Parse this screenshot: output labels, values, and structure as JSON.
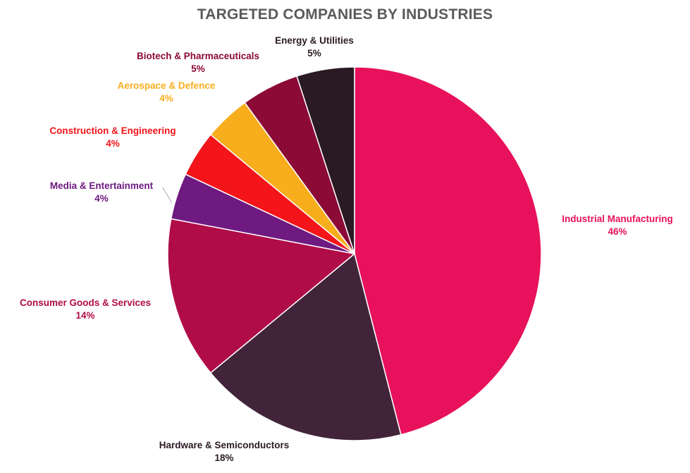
{
  "chart_data": {
    "type": "pie",
    "title": "TARGETED COMPANIES BY INDUSTRIES",
    "start_angle": "top, clockwise",
    "slices": [
      {
        "label": "Industrial Manufacturing",
        "value": 46,
        "pct_label": "46%",
        "color": "#E8115B",
        "label_color": "#E8115B"
      },
      {
        "label": "Hardware & Semiconductors",
        "value": 18,
        "pct_label": "18%",
        "color": "#41243A",
        "label_color": "#2a1a24"
      },
      {
        "label": "Consumer Goods & Services",
        "value": 14,
        "pct_label": "14%",
        "color": "#B00D48",
        "label_color": "#B00D48"
      },
      {
        "label": "Media & Entertainment",
        "value": 4,
        "pct_label": "4%",
        "color": "#6E1A80",
        "label_color": "#6E1A80"
      },
      {
        "label": "Construction & Engineering",
        "value": 4,
        "pct_label": "4%",
        "color": "#F3151A",
        "label_color": "#F3151A"
      },
      {
        "label": "Aerospace & Defence",
        "value": 4,
        "pct_label": "4%",
        "color": "#F8AE1C",
        "label_color": "#F8AE1C"
      },
      {
        "label": "Biotech & Pharmaceuticals",
        "value": 5,
        "pct_label": "5%",
        "color": "#8B0A36",
        "label_color": "#8B0A36"
      },
      {
        "label": "Energy & Utilities",
        "value": 5,
        "pct_label": "5%",
        "color": "#2A1A24",
        "label_color": "#2A1A24"
      }
    ],
    "legend": "none (data labels outside slices)"
  }
}
